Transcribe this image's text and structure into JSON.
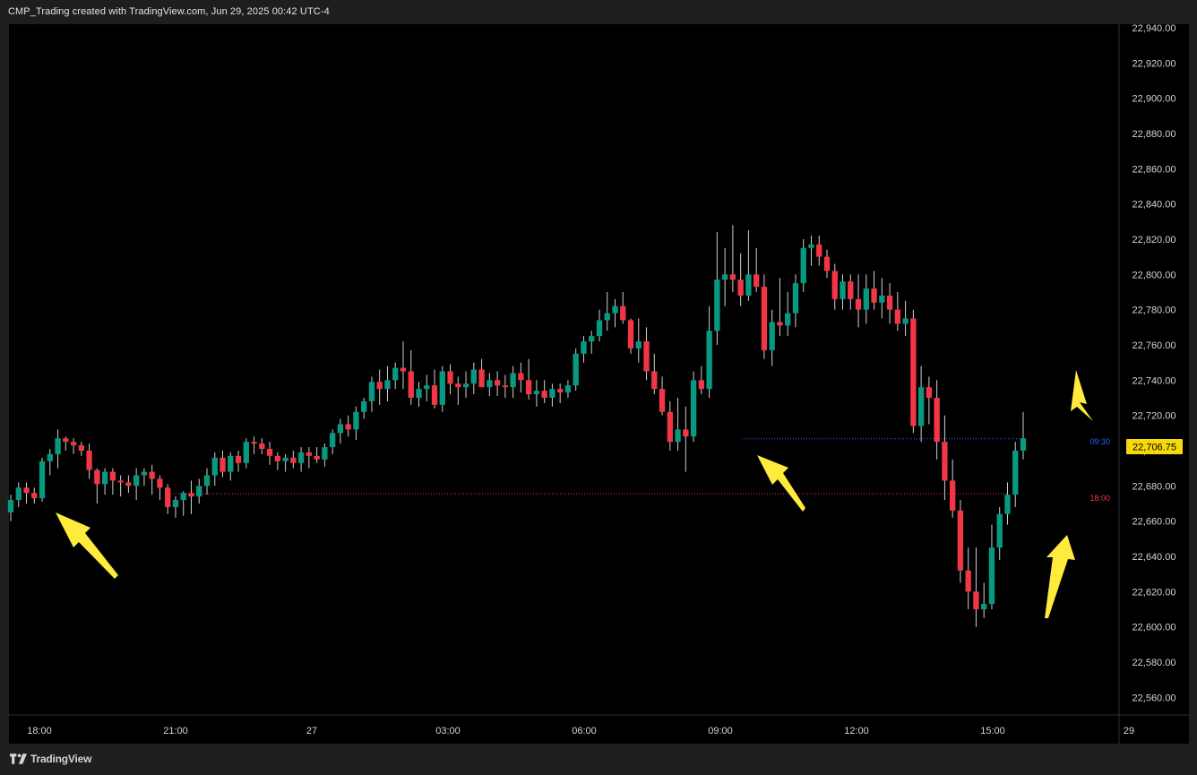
{
  "header": {
    "title": "CMP_Trading created with TradingView.com, Jun 29, 2025 00:42 UTC-4"
  },
  "footer": {
    "brand": "TradingView",
    "logo_icon": "tradingview-logo-icon"
  },
  "colors": {
    "background": "#000000",
    "frame": "#1e1e1e",
    "up_candle": "#089981",
    "down_candle": "#f23645",
    "axis_text": "#d1d4dc",
    "last_price_label_bg": "#f5d90a",
    "session_line_0930": "#2962ff",
    "session_line_1800": "#f23645",
    "annotation_arrow": "#ffeb3b"
  },
  "chart_data": {
    "type": "candlestick",
    "ylim": [
      22550,
      22942
    ],
    "y_ticks": [
      "22,560.00",
      "22,580.00",
      "22,600.00",
      "22,620.00",
      "22,640.00",
      "22,660.00",
      "22,680.00",
      "22,700.00",
      "22,720.00",
      "22,740.00",
      "22,760.00",
      "22,780.00",
      "22,800.00",
      "22,820.00",
      "22,840.00",
      "22,860.00",
      "22,880.00",
      "22,900.00",
      "22,920.00",
      "22,940.00"
    ],
    "x_labels": [
      "18:00",
      "21:00",
      "27",
      "03:00",
      "06:00",
      "09:00",
      "12:00",
      "15:00",
      "29"
    ],
    "grid": false,
    "last_price": {
      "label": "22,706.75",
      "value": 22706.75
    },
    "session_lines": [
      {
        "label": "09:30",
        "value": 22706.75,
        "color": "#2962ff"
      },
      {
        "label": "18:00",
        "value": 22675.5,
        "color": "#f23645"
      }
    ],
    "annotations": [
      "arrow-up-left near 18:00 low",
      "arrow-up-left near 09:30 low",
      "arrow-down at right edge",
      "arrow-up at right edge"
    ],
    "candles": [
      [
        22665,
        22675,
        22660,
        22672
      ],
      [
        22672,
        22682,
        22668,
        22679
      ],
      [
        22679,
        22682,
        22670,
        22676
      ],
      [
        22676,
        22679,
        22670,
        22673
      ],
      [
        22673,
        22696,
        22671,
        22694
      ],
      [
        22694,
        22701,
        22686,
        22698
      ],
      [
        22698,
        22712,
        22690,
        22707
      ],
      [
        22707,
        22708,
        22700,
        22705
      ],
      [
        22705,
        22707,
        22698,
        22703
      ],
      [
        22703,
        22705,
        22697,
        22700
      ],
      [
        22700,
        22704,
        22684,
        22689
      ],
      [
        22689,
        22690,
        22670,
        22681
      ],
      [
        22681,
        22690,
        22675,
        22688
      ],
      [
        22688,
        22690,
        22675,
        22683
      ],
      [
        22683,
        22686,
        22674,
        22682
      ],
      [
        22682,
        22686,
        22676,
        22680
      ],
      [
        22680,
        22690,
        22672,
        22686
      ],
      [
        22686,
        22690,
        22680,
        22688
      ],
      [
        22688,
        22692,
        22675,
        22684
      ],
      [
        22684,
        22686,
        22672,
        22679
      ],
      [
        22679,
        22681,
        22664,
        22668
      ],
      [
        22668,
        22674,
        22662,
        22672
      ],
      [
        22672,
        22677,
        22663,
        22676
      ],
      [
        22676,
        22683,
        22664,
        22674
      ],
      [
        22674,
        22684,
        22670,
        22680
      ],
      [
        22680,
        22690,
        22675,
        22686
      ],
      [
        22686,
        22699,
        22680,
        22696
      ],
      [
        22696,
        22700,
        22685,
        22688
      ],
      [
        22688,
        22699,
        22683,
        22697
      ],
      [
        22697,
        22700,
        22688,
        22693
      ],
      [
        22693,
        22707,
        22690,
        22705
      ],
      [
        22705,
        22708,
        22698,
        22704
      ],
      [
        22704,
        22707,
        22698,
        22701
      ],
      [
        22701,
        22705,
        22692,
        22697
      ],
      [
        22697,
        22699,
        22689,
        22694
      ],
      [
        22694,
        22698,
        22688,
        22696
      ],
      [
        22696,
        22700,
        22690,
        22693
      ],
      [
        22693,
        22702,
        22688,
        22699
      ],
      [
        22699,
        22702,
        22690,
        22697
      ],
      [
        22697,
        22702,
        22693,
        22695
      ],
      [
        22695,
        22704,
        22691,
        22702
      ],
      [
        22702,
        22712,
        22698,
        22710
      ],
      [
        22710,
        22718,
        22704,
        22715
      ],
      [
        22715,
        22720,
        22708,
        22712
      ],
      [
        22712,
        22725,
        22706,
        22722
      ],
      [
        22722,
        22730,
        22718,
        22728
      ],
      [
        22728,
        22742,
        22722,
        22739
      ],
      [
        22739,
        22746,
        22726,
        22735
      ],
      [
        22735,
        22748,
        22728,
        22740
      ],
      [
        22740,
        22750,
        22735,
        22747
      ],
      [
        22747,
        22762,
        22735,
        22745
      ],
      [
        22745,
        22757,
        22726,
        22730
      ],
      [
        22730,
        22739,
        22725,
        22735
      ],
      [
        22735,
        22743,
        22728,
        22737
      ],
      [
        22737,
        22746,
        22724,
        22726
      ],
      [
        22726,
        22748,
        22722,
        22745
      ],
      [
        22745,
        22749,
        22732,
        22738
      ],
      [
        22738,
        22742,
        22726,
        22736
      ],
      [
        22736,
        22745,
        22730,
        22738
      ],
      [
        22738,
        22750,
        22732,
        22746
      ],
      [
        22746,
        22752,
        22736,
        22736
      ],
      [
        22736,
        22744,
        22731,
        22740
      ],
      [
        22740,
        22745,
        22731,
        22737
      ],
      [
        22737,
        22743,
        22730,
        22736
      ],
      [
        22736,
        22748,
        22730,
        22744
      ],
      [
        22744,
        22750,
        22733,
        22740
      ],
      [
        22740,
        22752,
        22729,
        22732
      ],
      [
        22732,
        22740,
        22725,
        22734
      ],
      [
        22734,
        22740,
        22727,
        22730
      ],
      [
        22730,
        22738,
        22725,
        22735
      ],
      [
        22735,
        22738,
        22727,
        22733
      ],
      [
        22733,
        22740,
        22730,
        22737
      ],
      [
        22737,
        22758,
        22734,
        22755
      ],
      [
        22755,
        22765,
        22750,
        22762
      ],
      [
        22762,
        22768,
        22755,
        22765
      ],
      [
        22765,
        22780,
        22762,
        22774
      ],
      [
        22774,
        22790,
        22768,
        22778
      ],
      [
        22778,
        22786,
        22770,
        22782
      ],
      [
        22782,
        22790,
        22772,
        22774
      ],
      [
        22774,
        22775,
        22755,
        22758
      ],
      [
        22758,
        22775,
        22750,
        22762
      ],
      [
        22762,
        22770,
        22740,
        22745
      ],
      [
        22745,
        22755,
        22732,
        22735
      ],
      [
        22735,
        22742,
        22720,
        22722
      ],
      [
        22722,
        22728,
        22700,
        22705
      ],
      [
        22705,
        22730,
        22700,
        22712
      ],
      [
        22712,
        22725,
        22688,
        22708
      ],
      [
        22708,
        22745,
        22705,
        22740
      ],
      [
        22740,
        22748,
        22732,
        22735
      ],
      [
        22735,
        22782,
        22730,
        22768
      ],
      [
        22768,
        22824,
        22760,
        22797
      ],
      [
        22797,
        22815,
        22782,
        22800
      ],
      [
        22800,
        22828,
        22790,
        22797
      ],
      [
        22797,
        22812,
        22782,
        22788
      ],
      [
        22788,
        22825,
        22785,
        22800
      ],
      [
        22800,
        22815,
        22790,
        22793
      ],
      [
        22793,
        22800,
        22752,
        22757
      ],
      [
        22757,
        22780,
        22748,
        22773
      ],
      [
        22773,
        22798,
        22765,
        22771
      ],
      [
        22771,
        22790,
        22765,
        22778
      ],
      [
        22778,
        22800,
        22770,
        22795
      ],
      [
        22795,
        22820,
        22790,
        22815
      ],
      [
        22815,
        22822,
        22805,
        22817
      ],
      [
        22817,
        22822,
        22805,
        22810
      ],
      [
        22810,
        22814,
        22798,
        22802
      ],
      [
        22802,
        22806,
        22780,
        22786
      ],
      [
        22786,
        22800,
        22780,
        22796
      ],
      [
        22796,
        22800,
        22780,
        22786
      ],
      [
        22786,
        22800,
        22770,
        22780
      ],
      [
        22780,
        22800,
        22772,
        22792
      ],
      [
        22792,
        22802,
        22780,
        22784
      ],
      [
        22784,
        22798,
        22775,
        22788
      ],
      [
        22788,
        22795,
        22772,
        22780
      ],
      [
        22780,
        22790,
        22768,
        22772
      ],
      [
        22772,
        22785,
        22765,
        22775
      ],
      [
        22775,
        22780,
        22710,
        22714
      ],
      [
        22714,
        22748,
        22705,
        22736
      ],
      [
        22736,
        22742,
        22715,
        22730
      ],
      [
        22730,
        22740,
        22695,
        22705
      ],
      [
        22705,
        22720,
        22672,
        22683
      ],
      [
        22683,
        22695,
        22662,
        22666
      ],
      [
        22666,
        22672,
        22625,
        22632
      ],
      [
        22632,
        22645,
        22610,
        22620
      ],
      [
        22620,
        22645,
        22600,
        22610
      ],
      [
        22610,
        22625,
        22605,
        22613
      ],
      [
        22613,
        22658,
        22610,
        22645
      ],
      [
        22645,
        22668,
        22638,
        22664
      ],
      [
        22664,
        22682,
        22658,
        22675
      ],
      [
        22675,
        22705,
        22668,
        22700
      ],
      [
        22700,
        22722,
        22695,
        22707
      ]
    ]
  }
}
